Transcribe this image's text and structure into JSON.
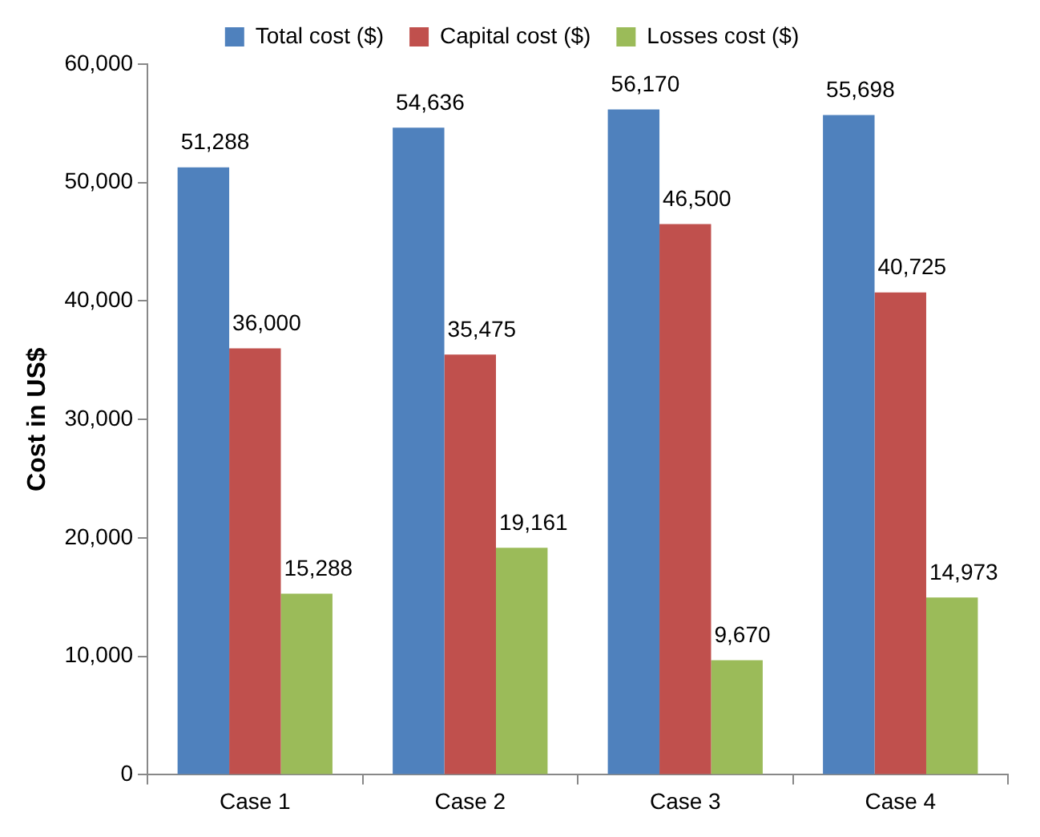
{
  "chart_data": {
    "type": "bar",
    "ylabel": "Cost in US$",
    "categories": [
      "Case 1",
      "Case 2",
      "Case 3",
      "Case 4"
    ],
    "series": [
      {
        "name": "Total cost ($)",
        "color": "#4f81bd",
        "values": [
          51288,
          54636,
          56170,
          55698
        ],
        "value_labels": [
          "51,288",
          "54,636",
          "56,170",
          "55,698"
        ]
      },
      {
        "name": "Capital cost ($)",
        "color": "#c0504d",
        "values": [
          36000,
          35475,
          46500,
          40725
        ],
        "value_labels": [
          "36,000",
          "35,475",
          "46,500",
          "40,725"
        ]
      },
      {
        "name": "Losses cost ($)",
        "color": "#9bbb59",
        "values": [
          15288,
          19161,
          9670,
          14973
        ],
        "value_labels": [
          "15,288",
          "19,161",
          "9,670",
          "14,973"
        ]
      }
    ],
    "ylim": [
      0,
      60000
    ],
    "yticks": [
      {
        "value": 0,
        "label": "0"
      },
      {
        "value": 10000,
        "label": "10,000"
      },
      {
        "value": 20000,
        "label": "20,000"
      },
      {
        "value": 30000,
        "label": "30,000"
      },
      {
        "value": 40000,
        "label": "40,000"
      },
      {
        "value": 50000,
        "label": "50,000"
      },
      {
        "value": 60000,
        "label": "60,000"
      }
    ],
    "grid": false,
    "legend": "top"
  }
}
